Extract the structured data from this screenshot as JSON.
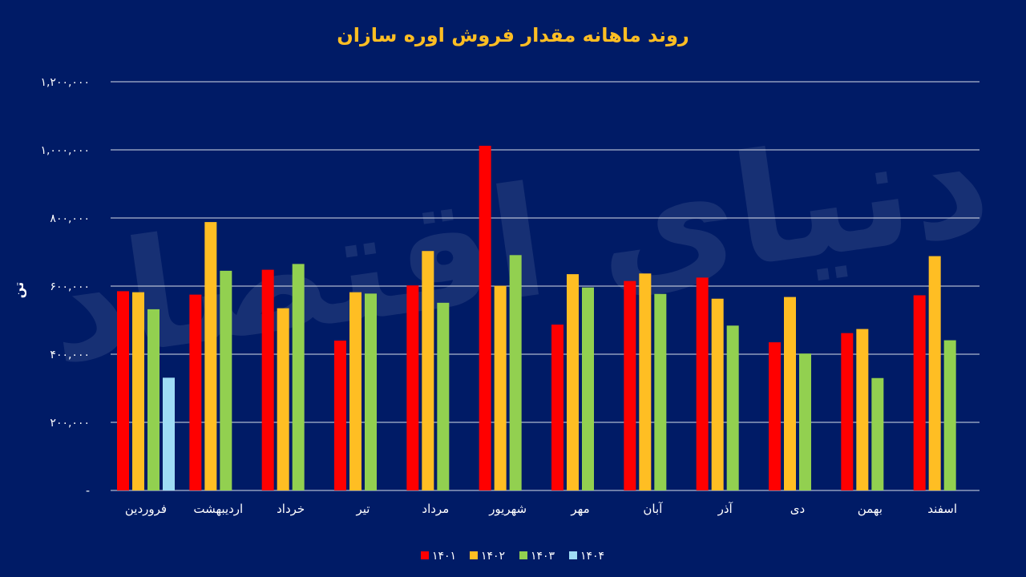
{
  "colors": {
    "background": "#001b66",
    "title": "#ffbe23",
    "text": "#ffffff",
    "grid": "#ffffff",
    "watermark": "#ffffff"
  },
  "chart_data": {
    "type": "bar",
    "title": "روند ماهانه مقدار فروش اوره سازان",
    "ylabel": "تن",
    "xlabel": "",
    "ylim": [
      0,
      1200000
    ],
    "grid": true,
    "legend_position": "bottom",
    "watermark_text": "دنیای اقتصاد",
    "y_ticks": [
      {
        "value": 0,
        "label": "-"
      },
      {
        "value": 200000,
        "label": "۲۰۰,۰۰۰"
      },
      {
        "value": 400000,
        "label": "۴۰۰,۰۰۰"
      },
      {
        "value": 600000,
        "label": "۶۰۰,۰۰۰"
      },
      {
        "value": 800000,
        "label": "۸۰۰,۰۰۰"
      },
      {
        "value": 1000000,
        "label": "۱,۰۰۰,۰۰۰"
      },
      {
        "value": 1200000,
        "label": "۱,۲۰۰,۰۰۰"
      }
    ],
    "categories": [
      "فروردین",
      "اردیبهشت",
      "خرداد",
      "تیر",
      "مرداد",
      "شهریور",
      "مهر",
      "آبان",
      "آذر",
      "دی",
      "بهمن",
      "اسفند"
    ],
    "series": [
      {
        "name": "۱۴۰۱",
        "color": "#ff0000",
        "values": [
          585000,
          575000,
          648000,
          440000,
          602000,
          1012000,
          487000,
          615000,
          625000,
          435000,
          462000,
          573000
        ]
      },
      {
        "name": "۱۴۰۲",
        "color": "#ffbe23",
        "values": [
          582000,
          788000,
          535000,
          582000,
          703000,
          601000,
          635000,
          637000,
          563000,
          568000,
          474000,
          688000
        ]
      },
      {
        "name": "۱۴۰۳",
        "color": "#92d050",
        "values": [
          532000,
          645000,
          665000,
          578000,
          551000,
          691000,
          596000,
          577000,
          484000,
          402000,
          330000,
          441000
        ]
      },
      {
        "name": "۱۴۰۴",
        "color": "#9fdcf5",
        "values": [
          331000,
          null,
          null,
          null,
          null,
          null,
          null,
          null,
          null,
          null,
          null,
          null
        ]
      }
    ]
  }
}
